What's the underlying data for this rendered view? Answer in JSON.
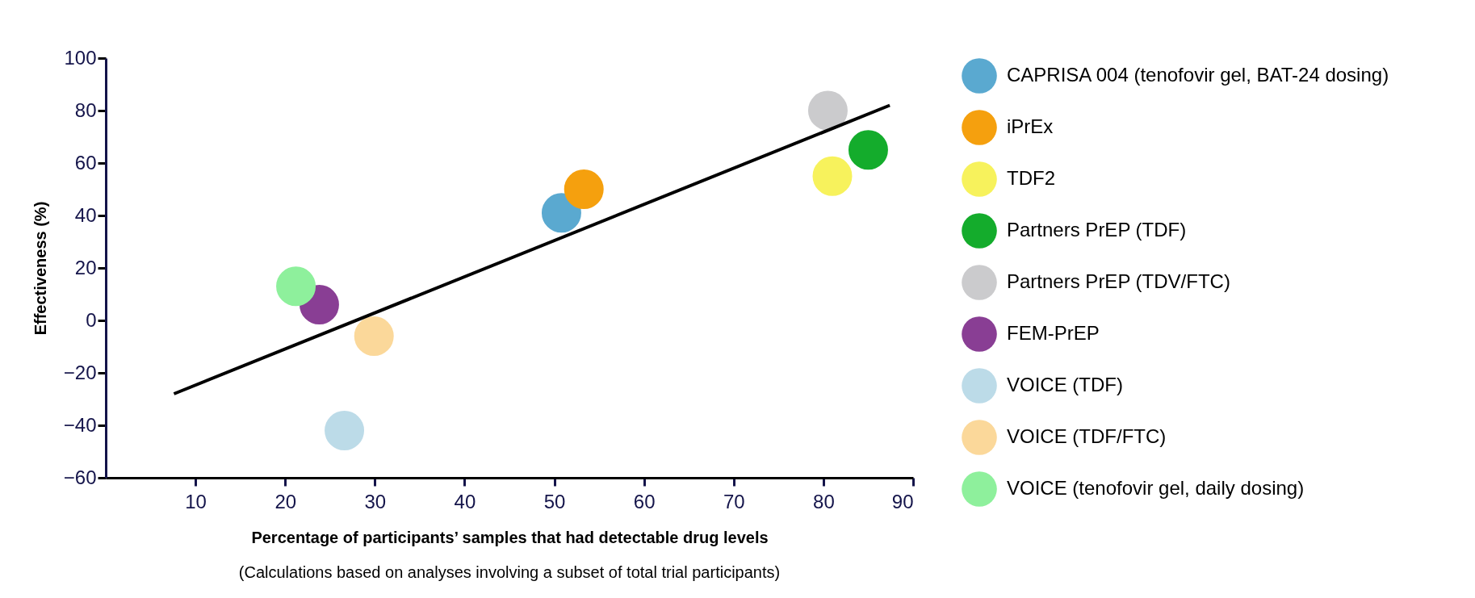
{
  "chart_data": {
    "type": "scatter",
    "xlabel": "Percentage of participants’ samples that had detectable drug levels",
    "ylabel": "Effectiveness (%)",
    "annotations": [
      "(Calculations based on analyses involving a subset of total trial participants)"
    ],
    "xlim": [
      0,
      90
    ],
    "xticks": [
      10,
      20,
      30,
      40,
      50,
      60,
      70,
      80,
      90
    ],
    "ylim": [
      -60,
      100
    ],
    "yticks": [
      -60,
      -40,
      -20,
      0,
      20,
      40,
      60,
      80,
      100
    ],
    "grid": false,
    "legend": "right",
    "marker": "circle",
    "series": [
      {
        "name": "CAPRISA 004 (tenofovir gel, BAT-24 dosing)",
        "color": "#5aa9d0",
        "x": [
          50.8
        ],
        "values": [
          41
        ]
      },
      {
        "name": "iPrEx",
        "color": "#f5a00e",
        "x": [
          53.3
        ],
        "values": [
          50
        ]
      },
      {
        "name": "TDF2",
        "color": "#f7f25c",
        "x": [
          81.0
        ],
        "values": [
          55
        ]
      },
      {
        "name": "Partners PrEP (TDF)",
        "color": "#14ac2c",
        "x": [
          85.0
        ],
        "values": [
          65
        ]
      },
      {
        "name": "Partners PrEP (TDV/FTC)",
        "color": "#cbcbcd",
        "x": [
          80.5
        ],
        "values": [
          80
        ]
      },
      {
        "name": "FEM-PrEP",
        "color": "#893e94",
        "x": [
          23.8
        ],
        "values": [
          6
        ]
      },
      {
        "name": "VOICE (TDF)",
        "color": "#bcdbe8",
        "x": [
          26.6
        ],
        "values": [
          -42
        ]
      },
      {
        "name": "VOICE (TDF/FTC)",
        "color": "#fbd89a",
        "x": [
          29.9
        ],
        "values": [
          -6
        ]
      },
      {
        "name": "VOICE (tenofovir gel, daily dosing)",
        "color": "#8ef09c",
        "x": [
          21.2
        ],
        "values": [
          13
        ]
      },
      {
        "type": "line",
        "color": "#000000",
        "x": [
          7.6,
          87.4
        ],
        "values": [
          -28,
          82
        ],
        "line_style": "solid",
        "marker": "none"
      }
    ]
  }
}
